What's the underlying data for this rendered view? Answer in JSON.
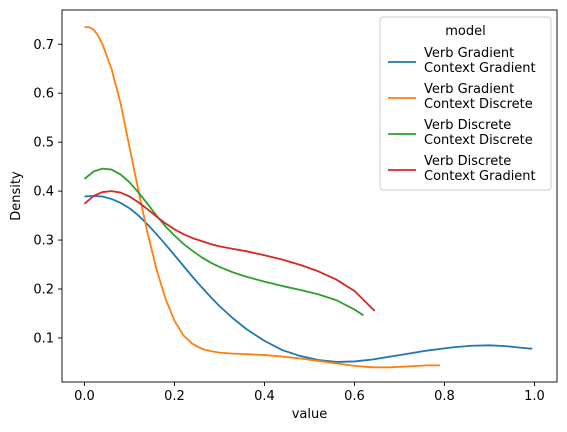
{
  "chart_data": {
    "type": "line",
    "xlabel": "value",
    "ylabel": "Density",
    "xlim": [
      -0.05,
      1.05
    ],
    "ylim": [
      0.01,
      0.77
    ],
    "xticks": [
      0.0,
      0.2,
      0.4,
      0.6,
      0.8,
      1.0
    ],
    "xtick_labels": [
      "0.0",
      "0.2",
      "0.4",
      "0.6",
      "0.8",
      "1.0"
    ],
    "yticks": [
      0.1,
      0.2,
      0.3,
      0.4,
      0.5,
      0.6,
      0.7
    ],
    "ytick_labels": [
      "0.1",
      "0.2",
      "0.3",
      "0.4",
      "0.5",
      "0.6",
      "0.7"
    ],
    "grid": false,
    "legend": {
      "title": "model",
      "placement": "top-right"
    },
    "series": [
      {
        "name": "Verb Gradient\nContext Gradient",
        "color": "#1f77b4",
        "x": [
          0.0,
          0.02,
          0.04,
          0.06,
          0.08,
          0.1,
          0.12,
          0.14,
          0.16,
          0.18,
          0.2,
          0.22,
          0.24,
          0.26,
          0.28,
          0.3,
          0.33,
          0.36,
          0.4,
          0.44,
          0.48,
          0.52,
          0.56,
          0.6,
          0.64,
          0.7,
          0.76,
          0.82,
          0.86,
          0.9,
          0.94,
          0.97,
          0.995
        ],
        "y": [
          0.389,
          0.39,
          0.389,
          0.384,
          0.376,
          0.365,
          0.35,
          0.332,
          0.312,
          0.291,
          0.269,
          0.247,
          0.225,
          0.204,
          0.184,
          0.165,
          0.14,
          0.118,
          0.094,
          0.075,
          0.063,
          0.055,
          0.051,
          0.052,
          0.056,
          0.065,
          0.074,
          0.081,
          0.084,
          0.085,
          0.083,
          0.08,
          0.078
        ]
      },
      {
        "name": "Verb Gradient\nContext Discrete",
        "color": "#ff7f0e",
        "x": [
          0.0,
          0.01,
          0.02,
          0.03,
          0.04,
          0.06,
          0.08,
          0.1,
          0.12,
          0.14,
          0.16,
          0.18,
          0.2,
          0.22,
          0.24,
          0.26,
          0.28,
          0.3,
          0.33,
          0.36,
          0.4,
          0.44,
          0.48,
          0.52,
          0.56,
          0.6,
          0.64,
          0.68,
          0.72,
          0.76,
          0.79
        ],
        "y": [
          0.735,
          0.735,
          0.73,
          0.718,
          0.7,
          0.65,
          0.58,
          0.49,
          0.4,
          0.315,
          0.24,
          0.18,
          0.135,
          0.105,
          0.088,
          0.078,
          0.073,
          0.07,
          0.068,
          0.067,
          0.065,
          0.062,
          0.058,
          0.053,
          0.048,
          0.043,
          0.04,
          0.04,
          0.042,
          0.044,
          0.044
        ]
      },
      {
        "name": "Verb Discrete\nContext Discrete",
        "color": "#2ca02c",
        "x": [
          0.0,
          0.02,
          0.04,
          0.06,
          0.08,
          0.1,
          0.12,
          0.14,
          0.16,
          0.18,
          0.2,
          0.22,
          0.24,
          0.26,
          0.28,
          0.3,
          0.33,
          0.36,
          0.4,
          0.44,
          0.48,
          0.52,
          0.56,
          0.6,
          0.62
        ],
        "y": [
          0.425,
          0.44,
          0.446,
          0.444,
          0.434,
          0.418,
          0.397,
          0.374,
          0.35,
          0.328,
          0.309,
          0.292,
          0.278,
          0.265,
          0.254,
          0.245,
          0.234,
          0.225,
          0.215,
          0.206,
          0.198,
          0.189,
          0.177,
          0.158,
          0.146
        ]
      },
      {
        "name": "Verb Discrete\nContext Gradient",
        "color": "#d62728",
        "x": [
          0.0,
          0.02,
          0.04,
          0.06,
          0.08,
          0.1,
          0.12,
          0.14,
          0.16,
          0.18,
          0.2,
          0.22,
          0.24,
          0.26,
          0.28,
          0.3,
          0.33,
          0.36,
          0.4,
          0.44,
          0.48,
          0.52,
          0.56,
          0.6,
          0.645
        ],
        "y": [
          0.374,
          0.39,
          0.398,
          0.4,
          0.397,
          0.389,
          0.377,
          0.363,
          0.348,
          0.334,
          0.322,
          0.312,
          0.304,
          0.298,
          0.292,
          0.287,
          0.282,
          0.277,
          0.269,
          0.26,
          0.249,
          0.236,
          0.219,
          0.196,
          0.155
        ]
      }
    ]
  }
}
